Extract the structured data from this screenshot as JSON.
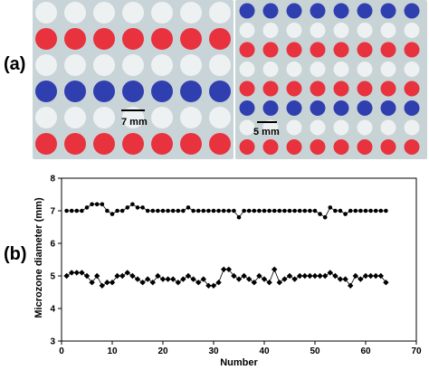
{
  "panels": {
    "a_label": "(a)",
    "b_label": "(b)"
  },
  "photos": {
    "left": {
      "scale_label": "7 mm",
      "background": "#c9d4d8",
      "rows": [
        "white",
        "red",
        "white",
        "blue",
        "white",
        "red"
      ]
    },
    "right": {
      "scale_label": "5 mm",
      "background": "#c8d3d6",
      "rows": [
        "blue",
        "white",
        "red",
        "white",
        "red",
        "blue",
        "white",
        "red"
      ]
    },
    "colors": {
      "red": "#e8323e",
      "blue": "#2f3fb0",
      "white": "#eef1f2"
    }
  },
  "chart_data": {
    "type": "scatter",
    "xlabel": "Number",
    "ylabel": "Microzone diameter (mm)",
    "xlim": [
      0,
      70
    ],
    "ylim": [
      3,
      8
    ],
    "xticks": [
      0,
      10,
      20,
      30,
      40,
      50,
      60,
      70
    ],
    "yticks": [
      3,
      4,
      5,
      6,
      7,
      8
    ],
    "grid": false,
    "series": [
      {
        "marker": "circle",
        "x": [
          1,
          2,
          3,
          4,
          5,
          6,
          7,
          8,
          9,
          10,
          11,
          12,
          13,
          14,
          15,
          16,
          17,
          18,
          19,
          20,
          21,
          22,
          23,
          24,
          25,
          26,
          27,
          28,
          29,
          30,
          31,
          32,
          33,
          34,
          35,
          36,
          37,
          38,
          39,
          40,
          41,
          42,
          43,
          44,
          45,
          46,
          47,
          48,
          49,
          50,
          51,
          52,
          53,
          54,
          55,
          56,
          57,
          58,
          59,
          60,
          61,
          62,
          63,
          64
        ],
        "y": [
          7.0,
          7.0,
          7.0,
          7.0,
          7.1,
          7.2,
          7.2,
          7.2,
          7.0,
          6.9,
          7.0,
          7.0,
          7.1,
          7.2,
          7.1,
          7.1,
          7.0,
          7.0,
          7.0,
          7.0,
          7.0,
          7.0,
          7.0,
          7.0,
          7.1,
          7.0,
          7.0,
          7.0,
          7.0,
          7.0,
          7.0,
          7.0,
          7.0,
          7.0,
          6.8,
          7.0,
          7.0,
          7.0,
          7.0,
          7.0,
          7.0,
          7.0,
          7.0,
          7.0,
          7.0,
          7.0,
          7.0,
          7.0,
          7.0,
          7.0,
          6.9,
          6.8,
          7.1,
          7.0,
          7.0,
          6.9,
          7.0,
          7.0,
          7.0,
          7.0,
          7.0,
          7.0,
          7.0,
          7.0
        ]
      },
      {
        "marker": "diamond",
        "x": [
          1,
          2,
          3,
          4,
          5,
          6,
          7,
          8,
          9,
          10,
          11,
          12,
          13,
          14,
          15,
          16,
          17,
          18,
          19,
          20,
          21,
          22,
          23,
          24,
          25,
          26,
          27,
          28,
          29,
          30,
          31,
          32,
          33,
          34,
          35,
          36,
          37,
          38,
          39,
          40,
          41,
          42,
          43,
          44,
          45,
          46,
          47,
          48,
          49,
          50,
          51,
          52,
          53,
          54,
          55,
          56,
          57,
          58,
          59,
          60,
          61,
          62,
          63,
          64
        ],
        "y": [
          5.0,
          5.1,
          5.1,
          5.1,
          5.0,
          4.8,
          5.0,
          4.7,
          4.8,
          4.8,
          5.0,
          5.0,
          5.1,
          5.0,
          4.9,
          4.8,
          4.9,
          4.8,
          5.0,
          4.9,
          4.9,
          4.9,
          4.8,
          4.9,
          5.0,
          4.9,
          4.8,
          4.9,
          4.7,
          4.7,
          4.8,
          5.2,
          5.2,
          5.0,
          4.9,
          5.0,
          4.9,
          4.8,
          5.0,
          4.9,
          4.8,
          5.2,
          4.8,
          4.9,
          5.0,
          4.9,
          5.0,
          5.0,
          5.0,
          5.0,
          5.0,
          5.0,
          5.1,
          5.0,
          4.9,
          4.9,
          4.7,
          5.0,
          4.9,
          5.0,
          5.0,
          5.0,
          5.0,
          4.8
        ]
      }
    ]
  }
}
